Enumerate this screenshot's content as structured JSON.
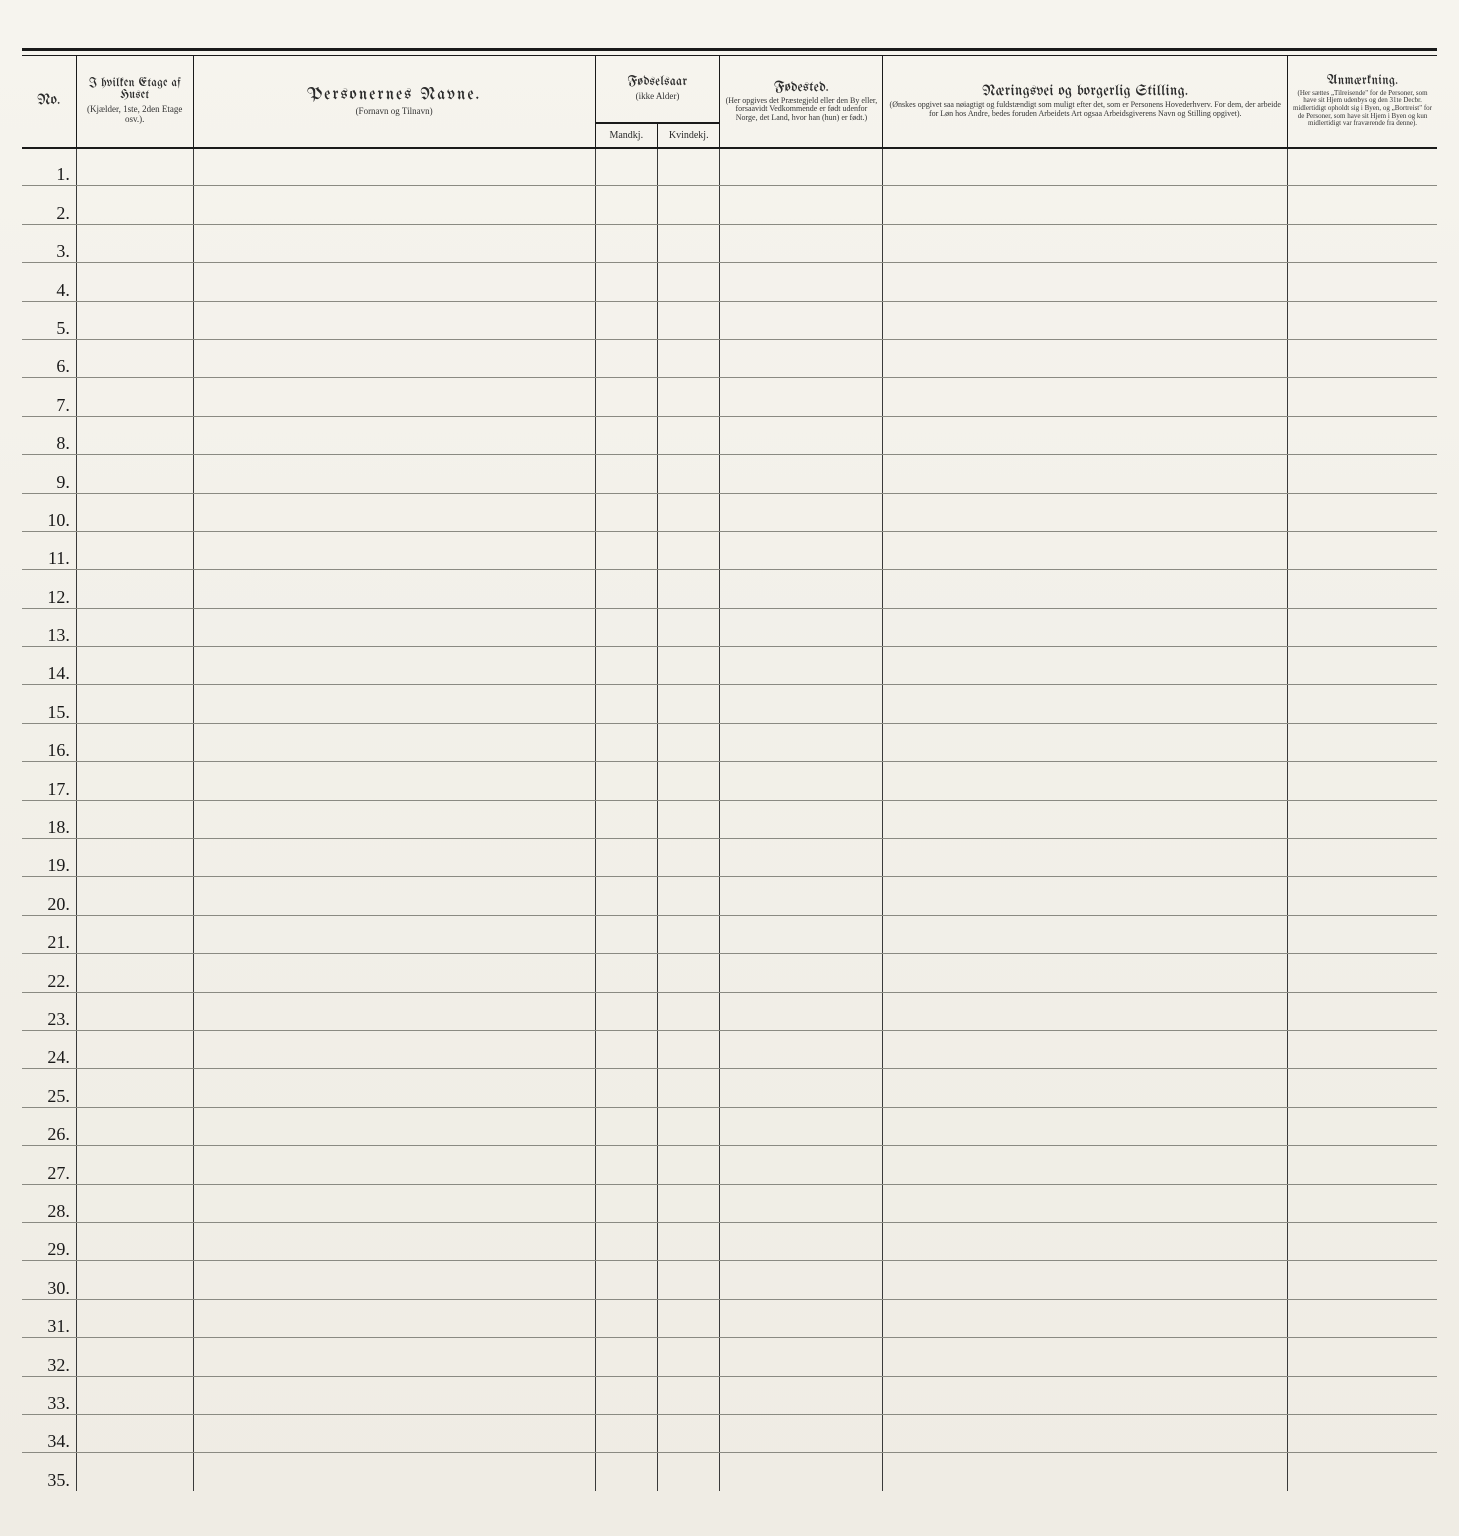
{
  "page": {
    "background_color": "#f5f3ed",
    "rule_color": "#1a1a1a",
    "row_line_color": "#8a8a82"
  },
  "columns": {
    "no": {
      "title": "No."
    },
    "etage": {
      "title": "I hvilken Etage af Huset",
      "sub": "(Kjælder, 1ste, 2den Etage osv.)."
    },
    "navne": {
      "title": "Personernes Navne.",
      "sub": "(Fornavn og Tilnavn)"
    },
    "fodselsaar": {
      "title": "Fødselsaar",
      "sub": "(ikke Alder)",
      "mandkj": "Mandkj.",
      "kvindekj": "Kvindekj."
    },
    "fodested": {
      "title": "Fødested.",
      "sub": "(Her opgives det Præstegjeld eller den By eller, forsaavidt Vedkommende er født udenfor Norge, det Land, hvor han (hun) er født.)"
    },
    "naering": {
      "title": "Næringsvei og borgerlig Stilling.",
      "sub": "(Ønskes opgivet saa nøiagtigt og fuldstændigt som muligt efter det, som er Personens Hovederhverv. For dem, der arbeide for Løn hos Andre, bedes foruden Arbeidets Art ogsaa Arbeidsgiverens Navn og Stilling opgivet)."
    },
    "anm": {
      "title": "Anmærkning.",
      "sub": "(Her sættes „Tilreisende\" for de Personer, som have sit Hjem udenbys og den 31te Decbr. midlertidigt opholdt sig i Byen, og „Bortreist\" for de Personer, som have sit Hjem i Byen og kun midlertidigt var fraværende fra denne)."
    }
  },
  "rows": [
    {
      "n": "1."
    },
    {
      "n": "2."
    },
    {
      "n": "3."
    },
    {
      "n": "4."
    },
    {
      "n": "5."
    },
    {
      "n": "6."
    },
    {
      "n": "7."
    },
    {
      "n": "8."
    },
    {
      "n": "9."
    },
    {
      "n": "10."
    },
    {
      "n": "11."
    },
    {
      "n": "12."
    },
    {
      "n": "13."
    },
    {
      "n": "14."
    },
    {
      "n": "15."
    },
    {
      "n": "16."
    },
    {
      "n": "17."
    },
    {
      "n": "18."
    },
    {
      "n": "19."
    },
    {
      "n": "20."
    },
    {
      "n": "21."
    },
    {
      "n": "22."
    },
    {
      "n": "23."
    },
    {
      "n": "24."
    },
    {
      "n": "25."
    },
    {
      "n": "26."
    },
    {
      "n": "27."
    },
    {
      "n": "28."
    },
    {
      "n": "29."
    },
    {
      "n": "30."
    },
    {
      "n": "31."
    },
    {
      "n": "32."
    },
    {
      "n": "33."
    },
    {
      "n": "34."
    },
    {
      "n": "35."
    }
  ]
}
